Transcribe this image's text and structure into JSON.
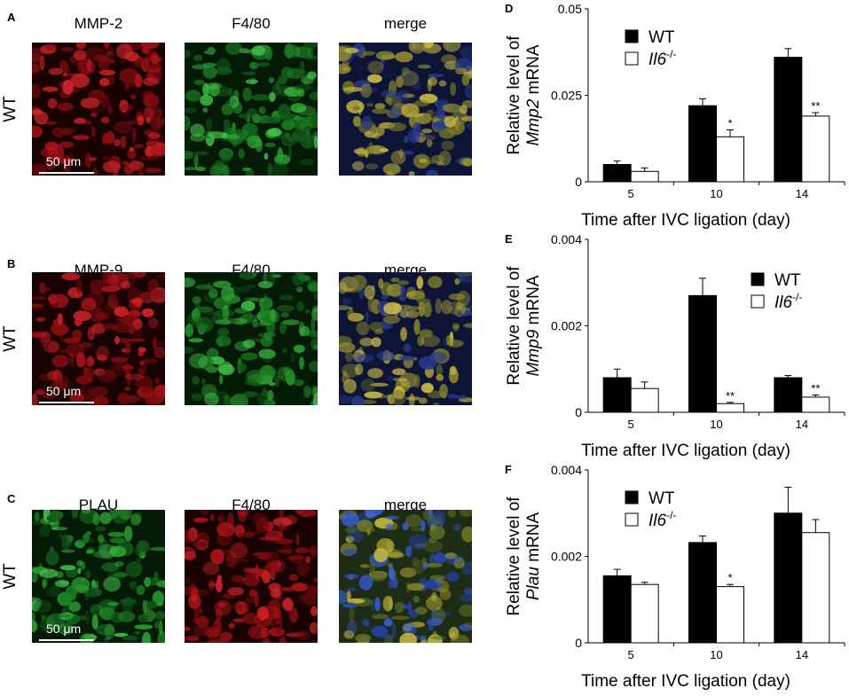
{
  "micrograph_panels": [
    {
      "label": "A",
      "row_label": "WT",
      "titles": [
        "MMP-2",
        "F4/80",
        "merge"
      ],
      "colors": [
        "red",
        "green",
        "merge"
      ],
      "scale_text": "50 μm"
    },
    {
      "label": "B",
      "row_label": "WT",
      "titles": [
        "MMP-9",
        "F4/80",
        "merge"
      ],
      "colors": [
        "red",
        "green",
        "merge"
      ],
      "scale_text": "50 μm"
    },
    {
      "label": "C",
      "row_label": "WT",
      "titles": [
        "PLAU",
        "F4/80",
        "merge"
      ],
      "colors": [
        "green",
        "red",
        "merge2"
      ],
      "scale_text": "50 μm"
    }
  ],
  "chart_data": [
    {
      "label": "D",
      "type": "bar",
      "categories": [
        "5",
        "10",
        "14"
      ],
      "series": [
        {
          "name": "WT",
          "values": [
            0.005,
            0.022,
            0.036
          ],
          "errors": [
            0.001,
            0.002,
            0.0025
          ]
        },
        {
          "name": "Il6-/-",
          "values": [
            0.003,
            0.013,
            0.019
          ],
          "errors": [
            0.001,
            0.002,
            0.001
          ]
        }
      ],
      "significance": [
        [
          "",
          ""
        ],
        [
          "",
          "*"
        ],
        [
          "",
          "**"
        ]
      ],
      "ylim": [
        0,
        0.05
      ],
      "yticks": [
        "0",
        "0.025",
        "0.05"
      ],
      "ylabel_line1": "Relative level of",
      "ylabel_gene": "Mmp2",
      "ylabel_suffix": " mRNA",
      "xlabel": "Time after IVC ligation (day)",
      "legend_wt": "WT",
      "legend_ko_base": "Il6",
      "legend_ko_sup": "-/-"
    },
    {
      "label": "E",
      "type": "bar",
      "categories": [
        "5",
        "10",
        "14"
      ],
      "series": [
        {
          "name": "WT",
          "values": [
            0.0008,
            0.0027,
            0.0008
          ],
          "errors": [
            0.0002,
            0.0004,
            5e-05
          ]
        },
        {
          "name": "Il6-/-",
          "values": [
            0.00055,
            0.0002,
            0.00035
          ],
          "errors": [
            0.00015,
            3e-05,
            5e-05
          ]
        }
      ],
      "significance": [
        [
          "",
          ""
        ],
        [
          "",
          "**"
        ],
        [
          "",
          "**"
        ]
      ],
      "ylim": [
        0,
        0.004
      ],
      "yticks": [
        "0",
        "0.002",
        "0.004"
      ],
      "ylabel_line1": "Relative level of",
      "ylabel_gene": "Mmp9",
      "ylabel_suffix": " mRNA",
      "xlabel": "Time after IVC ligation (day)",
      "legend_wt": "WT",
      "legend_ko_base": "Il6",
      "legend_ko_sup": "-/-"
    },
    {
      "label": "F",
      "type": "bar",
      "categories": [
        "5",
        "10",
        "14"
      ],
      "series": [
        {
          "name": "WT",
          "values": [
            0.00155,
            0.00232,
            0.003
          ],
          "errors": [
            0.00015,
            0.00015,
            0.0006
          ]
        },
        {
          "name": "Il6-/-",
          "values": [
            0.00135,
            0.0013,
            0.00255
          ],
          "errors": [
            5e-05,
            5e-05,
            0.0003
          ]
        }
      ],
      "significance": [
        [
          "",
          ""
        ],
        [
          "",
          "*"
        ],
        [
          "",
          ""
        ]
      ],
      "ylim": [
        0,
        0.004
      ],
      "yticks": [
        "0",
        "0.002",
        "0.004"
      ],
      "ylabel_line1": "Relative level of",
      "ylabel_gene": "Plau",
      "ylabel_suffix": " mRNA",
      "xlabel": "Time after IVC ligation (day)",
      "legend_wt": "WT",
      "legend_ko_base": "Il6",
      "legend_ko_sup": "-/-"
    }
  ]
}
